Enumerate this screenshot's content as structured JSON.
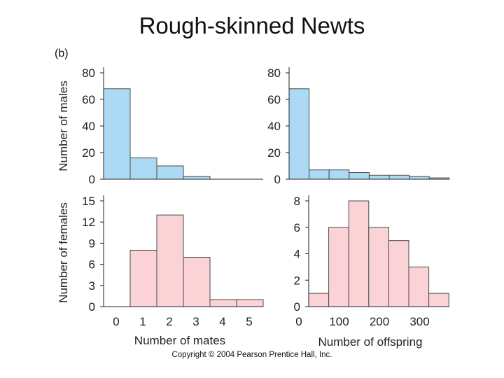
{
  "title": "Rough-skinned Newts",
  "panel_label": "(b)",
  "copyright": "Copyright © 2004 Pearson Prentice Hall, Inc.",
  "colors": {
    "male_fill": "#acd9f3",
    "female_fill": "#fbd3d6",
    "bar_stroke": "#4a4a4a",
    "axis": "#222222"
  },
  "chart_data": [
    {
      "id": "males-mates",
      "type": "bar",
      "sex": "male",
      "ylabel": "Number of males",
      "xlabel": "",
      "bin_edges": [
        0,
        1,
        2,
        3,
        4,
        5
      ],
      "values": [
        68,
        16,
        10,
        2,
        0
      ],
      "ylim": [
        0,
        80
      ],
      "yticks": [
        "80",
        "60",
        "40",
        "20",
        "0"
      ],
      "ytick_values": [
        80,
        60,
        40,
        20,
        0
      ]
    },
    {
      "id": "males-offspring",
      "type": "bar",
      "sex": "male",
      "ylabel": "",
      "xlabel": "",
      "bin_edges": [
        0,
        50,
        100,
        150,
        200,
        250,
        300,
        350
      ],
      "values": [
        68,
        7,
        7,
        5,
        3,
        3,
        2,
        1
      ],
      "values_note": "eight bars spanning 0-~375 offspring",
      "ylim": [
        0,
        80
      ],
      "yticks": [
        "80",
        "60",
        "40",
        "20",
        "0"
      ],
      "ytick_values": [
        80,
        60,
        40,
        20,
        0
      ]
    },
    {
      "id": "females-mates",
      "type": "bar",
      "sex": "female",
      "ylabel": "Number of females",
      "xlabel": "Number of mates",
      "bin_edges": [
        0,
        1,
        2,
        3,
        4,
        5
      ],
      "values": [
        0,
        8,
        13,
        7,
        1,
        1
      ],
      "ylim": [
        0,
        15
      ],
      "yticks": [
        "15",
        "12",
        "9",
        "6",
        "3",
        "0"
      ],
      "ytick_values": [
        15,
        12,
        9,
        6,
        3,
        0
      ],
      "xticks": [
        "0",
        "1",
        "2",
        "3",
        "4",
        "5"
      ],
      "xtick_values": [
        0,
        1,
        2,
        3,
        4,
        5
      ]
    },
    {
      "id": "females-offspring",
      "type": "bar",
      "sex": "female",
      "ylabel": "",
      "xlabel": "Number of offspring",
      "values": [
        1,
        6,
        8,
        6,
        5,
        3,
        1
      ],
      "ylim": [
        0,
        8
      ],
      "yticks": [
        "8",
        "6",
        "4",
        "2",
        "0"
      ],
      "ytick_values": [
        8,
        6,
        4,
        2,
        0
      ],
      "xticks": [
        "0",
        "100",
        "200",
        "300"
      ],
      "xtick_values": [
        0,
        100,
        200,
        300
      ]
    }
  ]
}
